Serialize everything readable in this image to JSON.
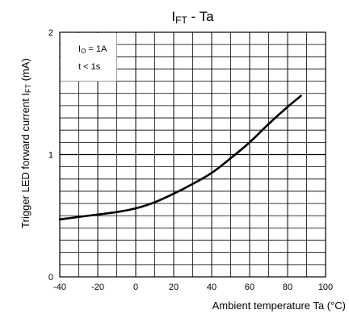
{
  "chart_data": {
    "type": "line",
    "title_main": "I",
    "title_sub": "FT",
    "title_rest": " - Ta",
    "xlabel": "Ambient temperature Ta (°C)",
    "ylabel_main": "Trigger LED forward current I",
    "ylabel_sub": "FT",
    "ylabel_rest": " (mA)",
    "xlim": [
      -40,
      100
    ],
    "ylim": [
      0,
      2
    ],
    "x_ticks": [
      -40,
      -20,
      0,
      20,
      40,
      60,
      80,
      100
    ],
    "x_tick_labels": [
      "-40",
      "-20",
      "0",
      "20",
      "40",
      "60",
      "80",
      "100"
    ],
    "y_ticks": [
      0,
      1,
      2
    ],
    "y_tick_labels": [
      "0",
      "1",
      "2"
    ],
    "grid": true,
    "conditions": {
      "line1_main": "I",
      "line1_sub": "O",
      "line1_rest": " = 1A",
      "line2": "t < 1s"
    },
    "series": [
      {
        "x": [
          -40,
          -30,
          -20,
          -10,
          0,
          10,
          20,
          30,
          40,
          50,
          60,
          70,
          80,
          87
        ],
        "y": [
          0.47,
          0.49,
          0.51,
          0.53,
          0.56,
          0.61,
          0.68,
          0.76,
          0.85,
          0.97,
          1.1,
          1.25,
          1.39,
          1.48
        ]
      }
    ],
    "colors": {
      "line": "#000000",
      "grid": "#000000"
    }
  }
}
